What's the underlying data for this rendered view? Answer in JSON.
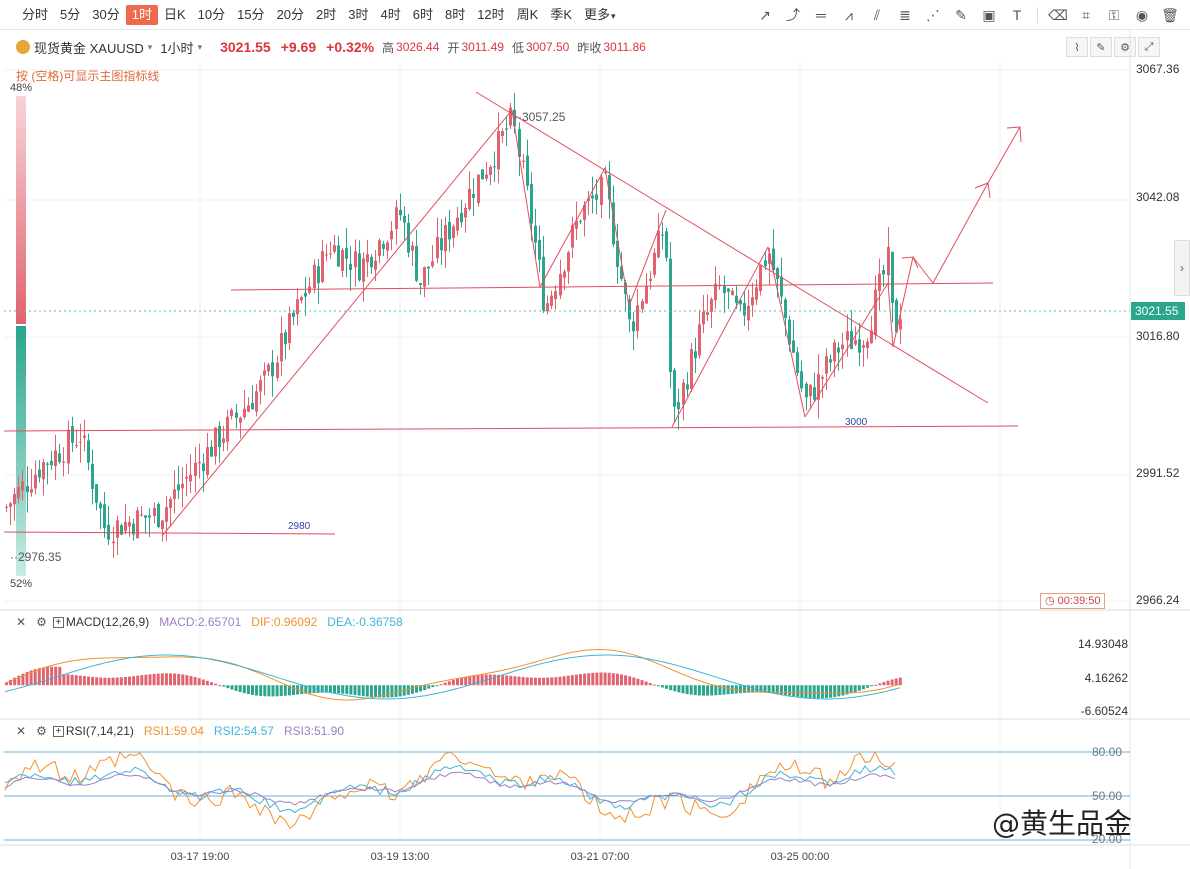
{
  "toolbar": {
    "timeframes": [
      "分时",
      "5分",
      "30分",
      "1时",
      "日K",
      "10分",
      "15分",
      "20分",
      "2时",
      "3时",
      "4时",
      "6时",
      "8时",
      "12时",
      "周K",
      "季K",
      "更多"
    ],
    "active_timeframe": "1时",
    "tool_icons": [
      "trend-line-icon",
      "ray-icon",
      "horizontal-line-icon",
      "polyline-icon",
      "parallel-channel-icon",
      "fibonacci-icon",
      "gann-fan-icon",
      "brush-icon",
      "picture-icon",
      "text-tool-icon",
      "eraser-icon",
      "screenshot-icon",
      "lock-icon",
      "eye-icon",
      "trash-icon"
    ]
  },
  "info": {
    "symbol_name": "现货黄金 XAUUSD",
    "period": "1小时",
    "price": "3021.55",
    "change": "+9.69",
    "change_pct": "+0.32%",
    "high_label": "高",
    "high": "3026.44",
    "open_label": "开",
    "open": "3011.49",
    "low_label": "低",
    "low": "3007.50",
    "prev_close_label": "昨收",
    "prev_close": "3011.86",
    "hint": "按 (空格)可显示主图指标线"
  },
  "side_bar": {
    "top_pct": "48%",
    "bottom_pct": "52%"
  },
  "countdown": "00:39:50",
  "macd_legend": {
    "name": "MACD(12,26,9)",
    "macd": "MACD:2.65701",
    "dif": "DIF:0.96092",
    "dea": "DEA:-0.36758"
  },
  "rsi_legend": {
    "name": "RSI(7,14,21)",
    "rsi1": "RSI1:59.04",
    "rsi2": "RSI2:54.57",
    "rsi3": "RSI3:51.90"
  },
  "watermark": "@黄生品金",
  "colors": {
    "up": "#e06370",
    "down": "#2aa58e",
    "line": "#e34d5e",
    "macd_dif": "#f0922c",
    "macd_dea": "#3fb5d6",
    "rsi1": "#f0922c",
    "rsi2": "#3fb5d6",
    "rsi3": "#9c80c4"
  },
  "chart_data": [
    {
      "type": "candlestick",
      "title": "现货黄金 XAUUSD 1小时",
      "price_axis_ticks": [
        "3067.36",
        "3042.08",
        "3016.80",
        "2991.52",
        "2966.24"
      ],
      "last_price_label": "3021.55",
      "ylim": [
        2966.24,
        3067.36
      ],
      "x_tick_labels": [
        "03-17 19:00",
        "03-19 13:00",
        "03-21 07:00",
        "03-25 00:00"
      ],
      "annotations": [
        {
          "text": "3057.25",
          "value": 3057.25
        },
        {
          "text": "2976.35",
          "value": 2976.35
        },
        {
          "text": "3000",
          "value": 3000
        },
        {
          "text": "2980",
          "value": 2980
        }
      ],
      "key_points": [
        {
          "label": "start",
          "value": 2980
        },
        {
          "label": "peak",
          "value": 3057.25
        },
        {
          "label": "local-high",
          "value": 3045
        },
        {
          "label": "local-low",
          "value": 3000
        },
        {
          "label": "right-high",
          "value": 3031
        },
        {
          "label": "right-low",
          "value": 3003
        },
        {
          "label": "last",
          "value": 3021.55
        }
      ]
    },
    {
      "type": "bar",
      "name": "MACD(12,26,9)",
      "y_tick_labels": [
        "14.93048",
        "4.16262",
        "-6.60524"
      ],
      "ylim": [
        -6.60524,
        14.93048
      ]
    },
    {
      "type": "line",
      "name": "RSI(7,14,21)",
      "y_tick_labels": [
        "80.00",
        "50.00",
        "20.00"
      ],
      "ylim": [
        20,
        80
      ]
    }
  ]
}
